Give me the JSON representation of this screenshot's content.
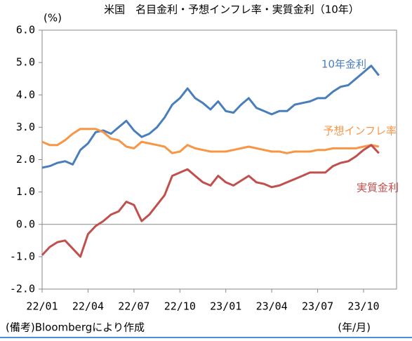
{
  "chart_data": {
    "type": "line",
    "title": "米国　名目金利・予想インフレ率・実質金利（10年）",
    "y_unit": "(%)",
    "x_unit": "(年/月)",
    "footnote": "(備考)Bloombergにより作成",
    "categories": [
      "22/01",
      null,
      null,
      null,
      null,
      null,
      "22/04",
      null,
      null,
      null,
      null,
      null,
      "22/07",
      null,
      null,
      null,
      null,
      null,
      "22/10",
      null,
      null,
      null,
      null,
      null,
      "23/01",
      null,
      null,
      null,
      null,
      null,
      "23/04",
      null,
      null,
      null,
      null,
      null,
      "23/07",
      null,
      null,
      null,
      null,
      null,
      "23/10",
      null,
      null,
      null,
      null
    ],
    "series": [
      {
        "name": "10年金利",
        "color": "#4a7ebb",
        "values": [
          1.75,
          1.8,
          1.9,
          1.95,
          1.85,
          2.3,
          2.5,
          2.85,
          2.9,
          2.8,
          3.0,
          3.2,
          2.9,
          2.7,
          2.8,
          3.0,
          3.3,
          3.7,
          3.9,
          4.2,
          3.9,
          3.75,
          3.55,
          3.8,
          3.5,
          3.45,
          3.7,
          3.9,
          3.6,
          3.5,
          3.4,
          3.5,
          3.5,
          3.7,
          3.75,
          3.8,
          3.9,
          3.9,
          4.1,
          4.25,
          4.3,
          4.5,
          4.7,
          4.9,
          4.6,
          null,
          null
        ]
      },
      {
        "name": "予想インフレ率",
        "color": "#f79646",
        "values": [
          2.55,
          2.45,
          2.45,
          2.6,
          2.8,
          2.95,
          2.95,
          2.95,
          2.85,
          2.65,
          2.6,
          2.4,
          2.35,
          2.55,
          2.5,
          2.45,
          2.4,
          2.2,
          2.25,
          2.45,
          2.35,
          2.3,
          2.25,
          2.25,
          2.25,
          2.3,
          2.35,
          2.4,
          2.35,
          2.3,
          2.25,
          2.25,
          2.2,
          2.25,
          2.25,
          2.25,
          2.3,
          2.3,
          2.35,
          2.35,
          2.35,
          2.35,
          2.4,
          2.45,
          2.4,
          null,
          null
        ]
      },
      {
        "name": "実質金利",
        "color": "#c0504d",
        "values": [
          -0.95,
          -0.7,
          -0.55,
          -0.5,
          -0.75,
          -1.0,
          -0.3,
          -0.05,
          0.1,
          0.3,
          0.4,
          0.7,
          0.6,
          0.1,
          0.3,
          0.6,
          0.9,
          1.5,
          1.6,
          1.7,
          1.5,
          1.3,
          1.2,
          1.5,
          1.3,
          1.2,
          1.35,
          1.5,
          1.3,
          1.25,
          1.15,
          1.2,
          1.3,
          1.4,
          1.5,
          1.6,
          1.6,
          1.6,
          1.8,
          1.9,
          1.95,
          2.1,
          2.3,
          2.45,
          2.2,
          null,
          null
        ]
      }
    ],
    "ylim": [
      -2,
      6
    ],
    "yticks": [
      {
        "value": -2,
        "label": "-2.0"
      },
      {
        "value": -1,
        "label": "-1.0"
      },
      {
        "value": 0,
        "label": "0.0"
      },
      {
        "value": 1,
        "label": "1.0"
      },
      {
        "value": 2,
        "label": "2.0"
      },
      {
        "value": 3,
        "label": "3.0"
      },
      {
        "value": 4,
        "label": "4.0"
      },
      {
        "value": 5,
        "label": "5.0"
      },
      {
        "value": 6,
        "label": "6.0"
      }
    ],
    "zero_line": true
  }
}
